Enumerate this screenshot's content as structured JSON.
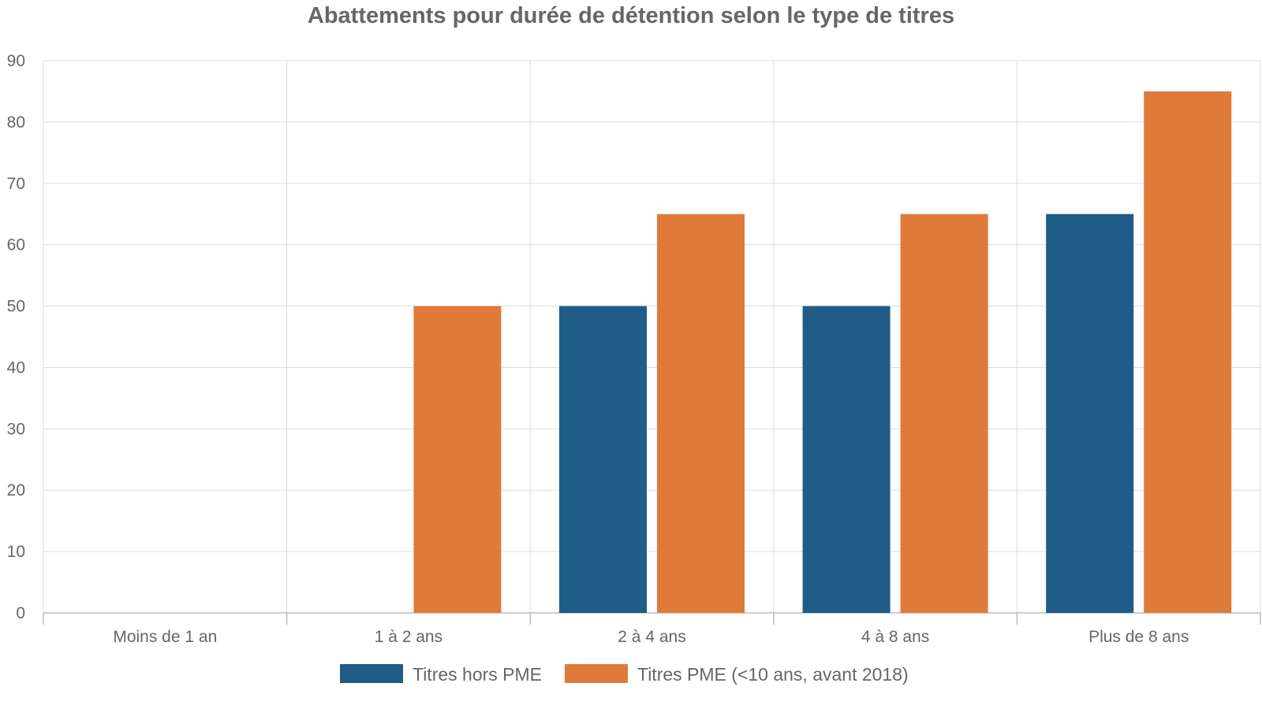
{
  "chart_data": {
    "type": "bar",
    "title": "Abattements pour durée de détention selon le type de titres",
    "xlabel": "",
    "ylabel": "",
    "categories": [
      "Moins de 1 an",
      "1 à 2 ans",
      "2 à 4 ans",
      "4 à 8 ans",
      "Plus de 8 ans"
    ],
    "series": [
      {
        "name": "Titres hors PME",
        "color": "#1f5c87",
        "values": [
          0,
          0,
          50,
          50,
          65
        ]
      },
      {
        "name": "Titres PME (<10 ans, avant 2018)",
        "color": "#e07a3a",
        "values": [
          0,
          50,
          65,
          65,
          85
        ]
      }
    ],
    "ylim": [
      0,
      90
    ],
    "yticks": [
      0,
      10,
      20,
      30,
      40,
      50,
      60,
      70,
      80,
      90
    ],
    "grid": true,
    "legend": "bottom-center"
  }
}
